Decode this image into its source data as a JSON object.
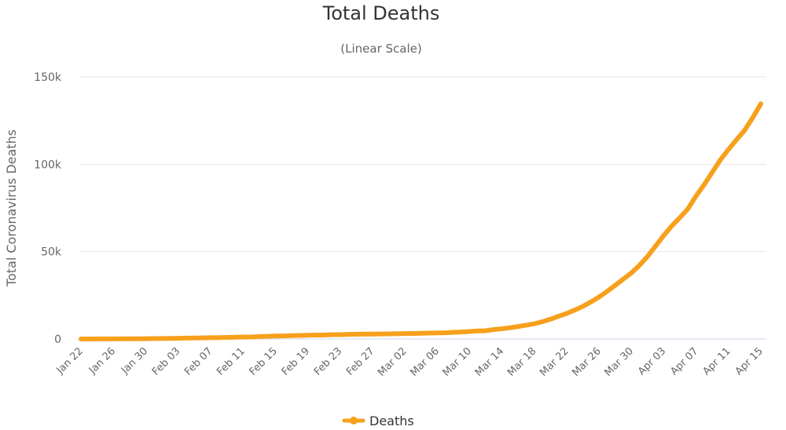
{
  "chart_data": {
    "type": "line",
    "title": "Total Deaths",
    "subtitle": "(Linear Scale)",
    "xlabel": "",
    "ylabel": "Total Coronavirus Deaths",
    "ylim": [
      0,
      150000
    ],
    "yticks": [
      0,
      50000,
      100000,
      150000
    ],
    "ytick_labels": [
      "0",
      "50k",
      "100k",
      "150k"
    ],
    "x": [
      "Jan 22",
      "Jan 23",
      "Jan 24",
      "Jan 25",
      "Jan 26",
      "Jan 27",
      "Jan 28",
      "Jan 29",
      "Jan 30",
      "Jan 31",
      "Feb 01",
      "Feb 02",
      "Feb 03",
      "Feb 04",
      "Feb 05",
      "Feb 06",
      "Feb 07",
      "Feb 08",
      "Feb 09",
      "Feb 10",
      "Feb 11",
      "Feb 12",
      "Feb 13",
      "Feb 14",
      "Feb 15",
      "Feb 16",
      "Feb 17",
      "Feb 18",
      "Feb 19",
      "Feb 20",
      "Feb 21",
      "Feb 22",
      "Feb 23",
      "Feb 24",
      "Feb 25",
      "Feb 26",
      "Feb 27",
      "Feb 28",
      "Feb 29",
      "Mar 01",
      "Mar 02",
      "Mar 03",
      "Mar 04",
      "Mar 05",
      "Mar 06",
      "Mar 07",
      "Mar 08",
      "Mar 09",
      "Mar 10",
      "Mar 11",
      "Mar 12",
      "Mar 13",
      "Mar 14",
      "Mar 15",
      "Mar 16",
      "Mar 17",
      "Mar 18",
      "Mar 19",
      "Mar 20",
      "Mar 21",
      "Mar 22",
      "Mar 23",
      "Mar 24",
      "Mar 25",
      "Mar 26",
      "Mar 27",
      "Mar 28",
      "Mar 29",
      "Mar 30",
      "Mar 31",
      "Apr 01",
      "Apr 02",
      "Apr 03",
      "Apr 04",
      "Apr 05",
      "Apr 06",
      "Apr 07",
      "Apr 08",
      "Apr 09",
      "Apr 10",
      "Apr 11",
      "Apr 12",
      "Apr 13",
      "Apr 14",
      "Apr 15"
    ],
    "xtick_labels": [
      "Jan 22",
      "Jan 26",
      "Jan 30",
      "Feb 03",
      "Feb 07",
      "Feb 11",
      "Feb 15",
      "Feb 19",
      "Feb 23",
      "Feb 27",
      "Mar 02",
      "Mar 06",
      "Mar 10",
      "Mar 14",
      "Mar 18",
      "Mar 22",
      "Mar 26",
      "Mar 30",
      "Apr 03",
      "Apr 07",
      "Apr 11",
      "Apr 15"
    ],
    "series": [
      {
        "name": "Deaths",
        "color": "#f7a01c",
        "values": [
          17,
          18,
          26,
          42,
          56,
          82,
          131,
          133,
          171,
          213,
          259,
          362,
          426,
          492,
          564,
          634,
          719,
          806,
          906,
          1013,
          1113,
          1118,
          1371,
          1523,
          1666,
          1770,
          1868,
          2007,
          2122,
          2247,
          2251,
          2458,
          2469,
          2629,
          2708,
          2770,
          2814,
          2872,
          2941,
          2996,
          3085,
          3160,
          3254,
          3348,
          3460,
          3558,
          3802,
          3988,
          4262,
          4615,
          4720,
          5404,
          5819,
          6440,
          7126,
          7905,
          8733,
          9867,
          11299,
          13000,
          14612,
          16505,
          18623,
          21181,
          23970,
          27198,
          30652,
          34210,
          37780,
          42107,
          47180,
          53190,
          59172,
          64715,
          69418,
          74565,
          81865,
          88338,
          95455,
          102525,
          108503,
          114090,
          119483,
          126681,
          134603
        ]
      }
    ],
    "legend": {
      "position": "bottom-center",
      "label": "Deaths"
    },
    "grid": true
  }
}
